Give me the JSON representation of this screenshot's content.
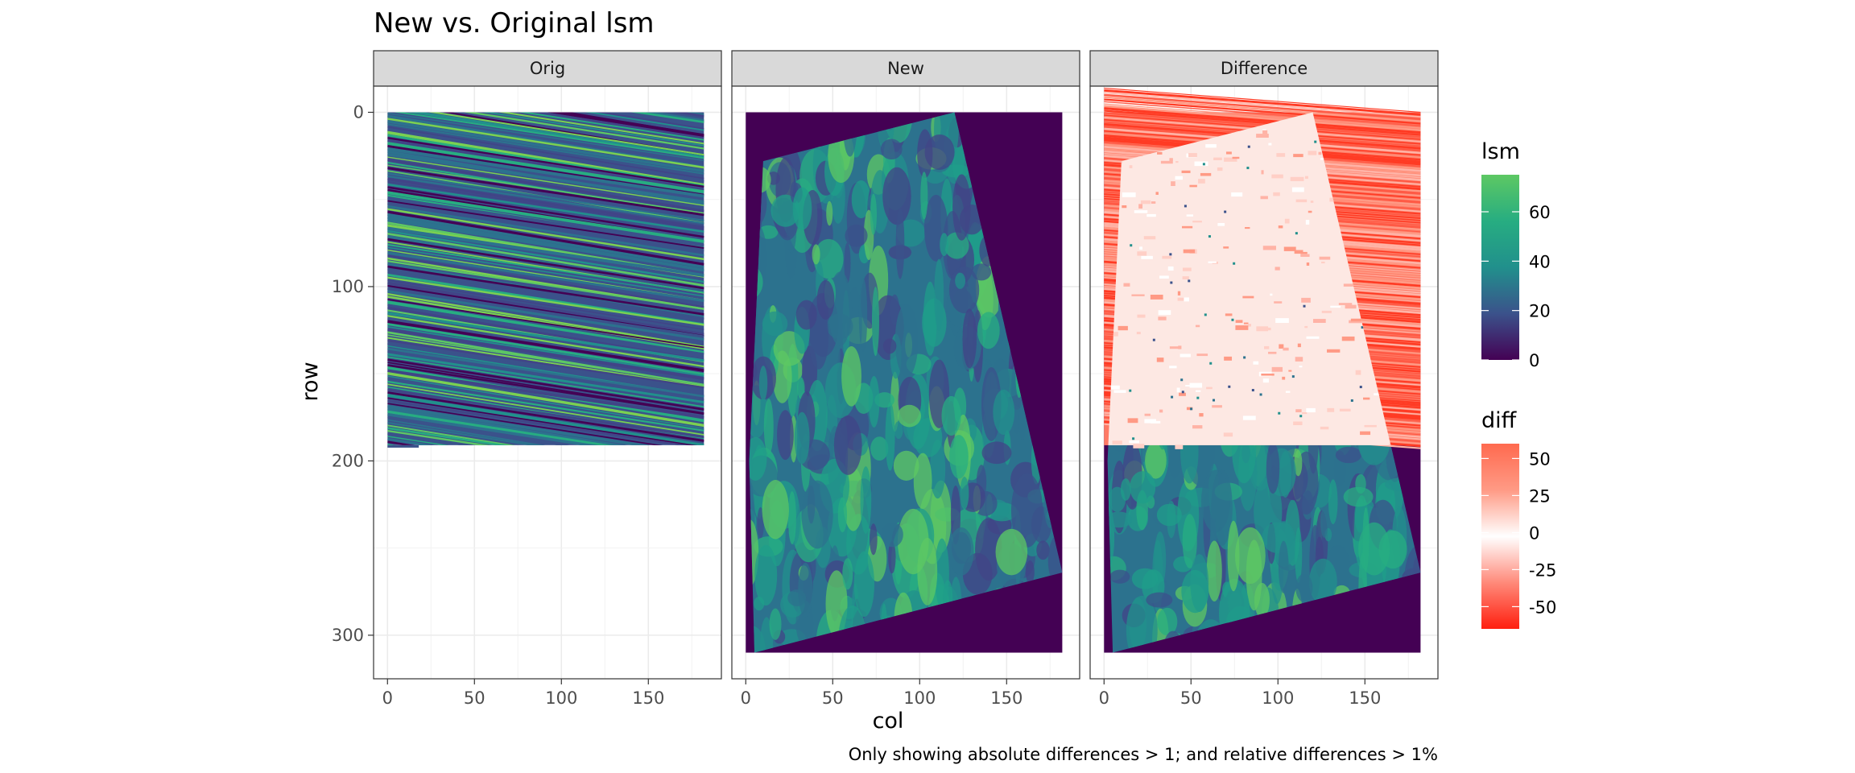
{
  "chart_data": {
    "type": "heatmap",
    "title": "New vs. Original lsm",
    "xlabel": "col",
    "ylabel": "row",
    "caption": "Only showing absolute differences > 1; and relative differences > 1%",
    "xlim": [
      -8,
      192
    ],
    "ylim": [
      325,
      -15
    ],
    "x_ticks": [
      0,
      50,
      100,
      150
    ],
    "y_ticks": [
      0,
      100,
      200,
      300
    ],
    "panels": [
      {
        "label": "Orig",
        "fill": "lsm",
        "extent": {
          "cols": [
            0,
            182
          ],
          "rows": [
            0,
            191
          ]
        },
        "region": [
          [
            0,
            0
          ],
          [
            182,
            0
          ],
          [
            182,
            191
          ],
          [
            0,
            191
          ]
        ]
      },
      {
        "label": "New",
        "fill": "lsm",
        "extent": {
          "cols": [
            0,
            182
          ],
          "rows": [
            0,
            310
          ]
        },
        "region": [
          [
            10,
            28
          ],
          [
            120,
            0
          ],
          [
            182,
            264
          ],
          [
            5,
            310
          ],
          [
            2,
            200
          ]
        ]
      },
      {
        "label": "Difference",
        "fill": "diff (rows 0-191) / lsm (rows 191-310)",
        "extent": {
          "cols": [
            0,
            182
          ],
          "rows": [
            0,
            310
          ]
        },
        "region": [
          [
            10,
            28
          ],
          [
            120,
            0
          ],
          [
            182,
            264
          ],
          [
            5,
            310
          ],
          [
            2,
            200
          ]
        ],
        "diff_rows": [
          0,
          191
        ]
      }
    ],
    "legends": [
      {
        "title": "lsm",
        "type": "colorbar",
        "range": [
          0,
          75
        ],
        "breaks": [
          0,
          20,
          40,
          60
        ],
        "labels": [
          "0",
          "20",
          "40",
          "60"
        ],
        "colors": [
          "#440154",
          "#3b528b",
          "#21908c",
          "#27ad81",
          "#5dc863"
        ]
      },
      {
        "title": "diff",
        "type": "colorbar",
        "range": [
          -65,
          60
        ],
        "breaks": [
          -50,
          -25,
          0,
          25,
          50
        ],
        "labels": [
          "-50",
          "-25",
          "0",
          "25",
          "50"
        ],
        "colors": [
          "#ff1f0f",
          "#ff8a7a",
          "#ffffff",
          "#ff9a85",
          "#ff6a4f"
        ]
      }
    ]
  }
}
